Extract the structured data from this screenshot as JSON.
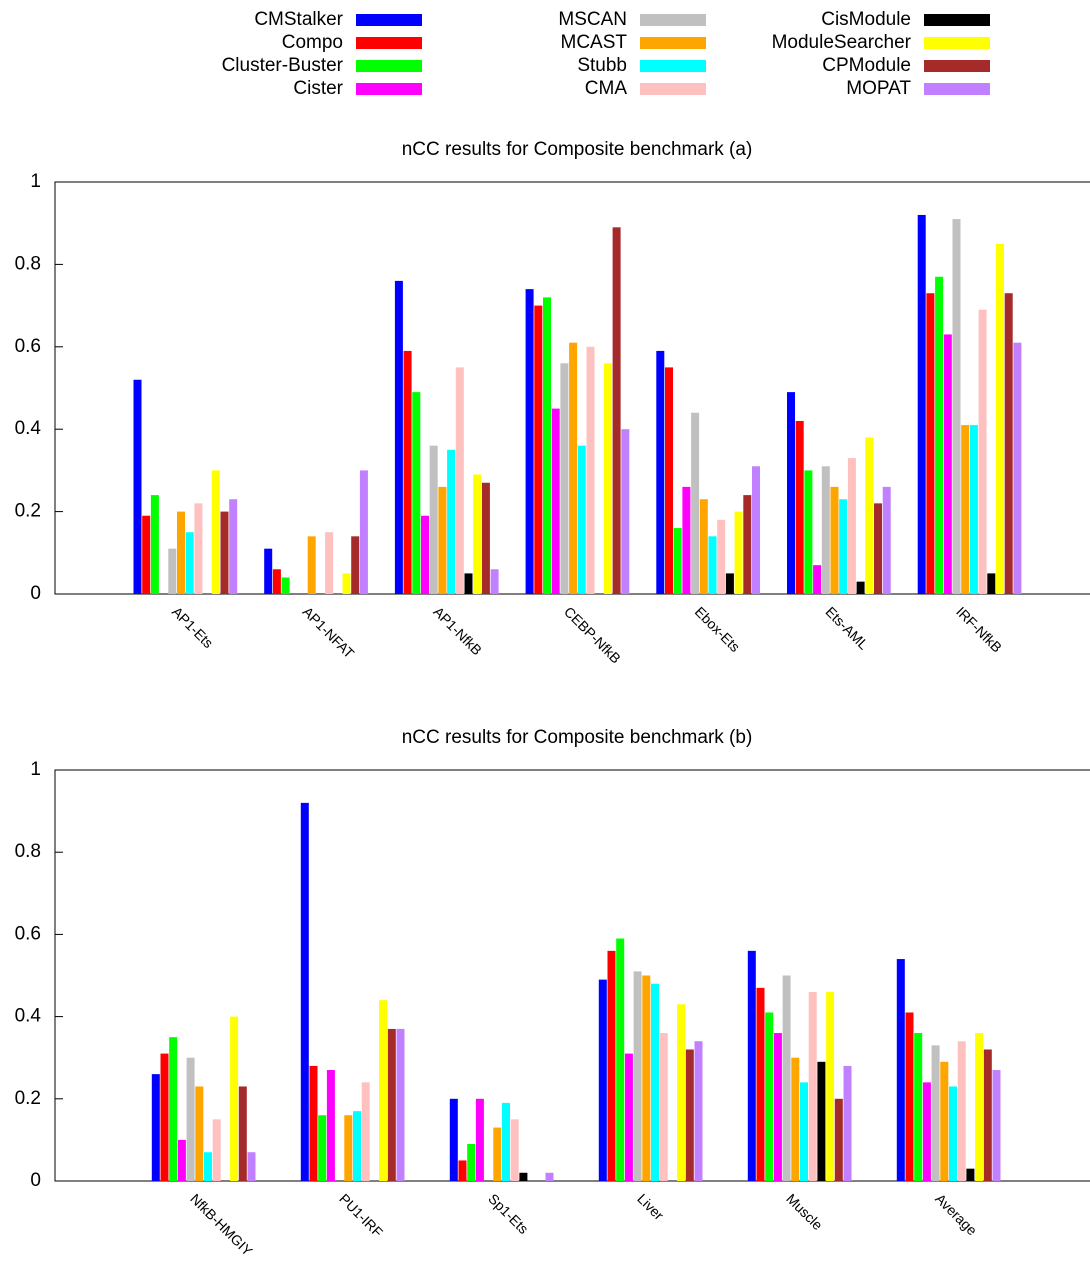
{
  "legend": {
    "series": [
      {
        "name": "CMStalker",
        "color": "#0000ff"
      },
      {
        "name": "Compo",
        "color": "#ff0000"
      },
      {
        "name": "Cluster-Buster",
        "color": "#00ff00"
      },
      {
        "name": "Cister",
        "color": "#ff00ff"
      },
      {
        "name": "MSCAN",
        "color": "#c0c0c0"
      },
      {
        "name": "MCAST",
        "color": "#ffa500"
      },
      {
        "name": "Stubb",
        "color": "#00ffff"
      },
      {
        "name": "CMA",
        "color": "#ffc0c0"
      },
      {
        "name": "CisModule",
        "color": "#000000"
      },
      {
        "name": "ModuleSearcher",
        "color": "#ffff00"
      },
      {
        "name": "CPModule",
        "color": "#a52a2a"
      },
      {
        "name": "MOPAT",
        "color": "#c080ff"
      }
    ]
  },
  "chart_data": [
    {
      "type": "bar",
      "title": "nCC results for Composite benchmark (a)",
      "categories": [
        "AP1-Ets",
        "AP1-NFAT",
        "AP1-NfkB",
        "CEBP-NfkB",
        "Ebox-Ets",
        "Ets-AML",
        "IRF-NfkB"
      ],
      "ylim": [
        0,
        1
      ],
      "yticks": [
        0,
        0.2,
        0.4,
        0.6,
        0.8,
        1
      ],
      "series": [
        {
          "values": [
            0.52,
            0.11,
            0.76,
            0.74,
            0.59,
            0.49,
            0.92
          ]
        },
        {
          "values": [
            0.19,
            0.06,
            0.59,
            0.7,
            0.55,
            0.42,
            0.73
          ]
        },
        {
          "values": [
            0.24,
            0.04,
            0.49,
            0.72,
            0.16,
            0.3,
            0.77
          ]
        },
        {
          "values": [
            0,
            0,
            0.19,
            0.45,
            0.26,
            0.07,
            0.63
          ]
        },
        {
          "values": [
            0.11,
            0,
            0.36,
            0.56,
            0.44,
            0.31,
            0.91
          ]
        },
        {
          "values": [
            0.2,
            0.14,
            0.26,
            0.61,
            0.23,
            0.26,
            0.41
          ]
        },
        {
          "values": [
            0.15,
            0,
            0.35,
            0.36,
            0.14,
            0.23,
            0.41
          ]
        },
        {
          "values": [
            0.22,
            0.15,
            0.55,
            0.6,
            0.18,
            0.33,
            0.69
          ]
        },
        {
          "values": [
            0,
            0,
            0.05,
            0,
            0.05,
            0.03,
            0.05
          ]
        },
        {
          "values": [
            0.3,
            0.05,
            0.29,
            0.56,
            0.2,
            0.38,
            0.85
          ]
        },
        {
          "values": [
            0.2,
            0.14,
            0.27,
            0.89,
            0.24,
            0.22,
            0.73
          ]
        },
        {
          "values": [
            0.23,
            0.3,
            0.06,
            0.4,
            0.31,
            0.26,
            0.61
          ]
        }
      ]
    },
    {
      "type": "bar",
      "title": "nCC results for Composite benchmark (b)",
      "categories": [
        "NfkB-HMGIY",
        "PU1-IRF",
        "Sp1-Ets",
        "Liver",
        "Muscle",
        "Average"
      ],
      "ylim": [
        0,
        1
      ],
      "yticks": [
        0,
        0.2,
        0.4,
        0.6,
        0.8,
        1
      ],
      "series": [
        {
          "values": [
            0.26,
            0.92,
            0.2,
            0.49,
            0.56,
            0.54
          ]
        },
        {
          "values": [
            0.31,
            0.28,
            0.05,
            0.56,
            0.47,
            0.41
          ]
        },
        {
          "values": [
            0.35,
            0.16,
            0.09,
            0.59,
            0.41,
            0.36
          ]
        },
        {
          "values": [
            0.1,
            0.27,
            0.2,
            0.31,
            0.36,
            0.24
          ]
        },
        {
          "values": [
            0.3,
            0,
            0,
            0.51,
            0.5,
            0.33
          ]
        },
        {
          "values": [
            0.23,
            0.16,
            0.13,
            0.5,
            0.3,
            0.29
          ]
        },
        {
          "values": [
            0.07,
            0.17,
            0.19,
            0.48,
            0.24,
            0.23
          ]
        },
        {
          "values": [
            0.15,
            0.24,
            0.15,
            0.36,
            0.46,
            0.34
          ]
        },
        {
          "values": [
            0,
            0,
            0.02,
            0,
            0.29,
            0.03
          ]
        },
        {
          "values": [
            0.4,
            0.44,
            0,
            0.43,
            0.46,
            0.36
          ]
        },
        {
          "values": [
            0.23,
            0.37,
            0,
            0.32,
            0.2,
            0.32
          ]
        },
        {
          "values": [
            0.07,
            0.37,
            0.02,
            0.34,
            0.28,
            0.27
          ]
        }
      ]
    }
  ]
}
